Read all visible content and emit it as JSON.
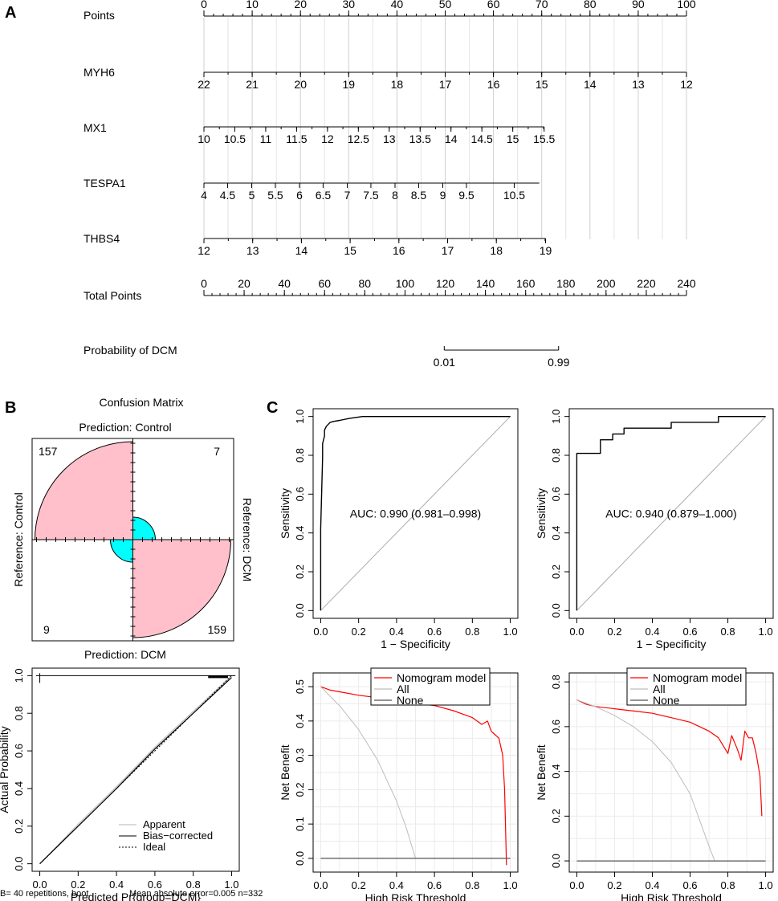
{
  "panels": {
    "a": "A",
    "b": "B",
    "c": "C"
  },
  "nomogram": {
    "rows": [
      {
        "key": "points",
        "label": "Points",
        "values": [
          0,
          10,
          20,
          30,
          40,
          50,
          60,
          70,
          80,
          90,
          100
        ],
        "labels": [
          "0",
          "10",
          "20",
          "30",
          "40",
          "50",
          "60",
          "70",
          "80",
          "90",
          "100"
        ]
      },
      {
        "key": "myh6",
        "label": "MYH6",
        "labels": [
          "22",
          "21",
          "20",
          "19",
          "18",
          "17",
          "16",
          "15",
          "14",
          "13",
          "12"
        ]
      },
      {
        "key": "mx1",
        "label": "MX1",
        "labels": [
          "10",
          "10.5",
          "11",
          "11.5",
          "12",
          "12.5",
          "13",
          "13.5",
          "14",
          "14.5",
          "15",
          "15.5"
        ]
      },
      {
        "key": "tespa1",
        "label": "TESPA1",
        "labels": [
          "4",
          "4.5",
          "5",
          "5.5",
          "6",
          "6.5",
          "7",
          "7.5",
          "8",
          "8.5",
          "9",
          "9.5",
          "10.5"
        ]
      },
      {
        "key": "thbs4",
        "label": "THBS4",
        "labels": [
          "12",
          "13",
          "14",
          "15",
          "16",
          "17",
          "18",
          "19"
        ]
      },
      {
        "key": "total",
        "label": "Total Points",
        "labels": [
          "0",
          "20",
          "40",
          "60",
          "80",
          "100",
          "120",
          "140",
          "160",
          "180",
          "200",
          "220",
          "240"
        ]
      },
      {
        "key": "prob",
        "label": "Probability of DCM",
        "labels": [
          "0.01",
          "0.99"
        ]
      }
    ]
  },
  "confusion": {
    "title": "Confusion Matrix",
    "top": "Prediction: Control",
    "bottom": "Prediction: DCM",
    "left": "Reference: Control",
    "right": "Reference: DCM",
    "counts": {
      "tl": "157",
      "tr": "7",
      "bl": "9",
      "br": "159"
    },
    "colors": {
      "correct": "#FFC0CB",
      "wrong": "#00FFFF"
    }
  },
  "chart_data": [
    {
      "id": "roc1",
      "type": "line",
      "title": "",
      "xlabel": "1 − Specificity",
      "ylabel": "Sensitivity",
      "xlim": [
        0,
        1
      ],
      "ylim": [
        0,
        1
      ],
      "ticks": [
        "0.0",
        "0.2",
        "0.4",
        "0.6",
        "0.8",
        "1.0"
      ],
      "annotation": "AUC: 0.990 (0.981–0.998)",
      "series": [
        {
          "name": "ROC",
          "x": [
            0,
            0,
            0.01,
            0.01,
            0.02,
            0.02,
            0.03,
            0.04,
            0.05,
            0.07,
            0.1,
            0.15,
            0.22,
            1
          ],
          "y": [
            0,
            0.42,
            0.79,
            0.86,
            0.9,
            0.93,
            0.95,
            0.96,
            0.97,
            0.975,
            0.98,
            0.99,
            1,
            1
          ]
        }
      ]
    },
    {
      "id": "roc2",
      "type": "line",
      "title": "",
      "xlabel": "1 − Specificity",
      "ylabel": "Sensitivity",
      "xlim": [
        0,
        1
      ],
      "ylim": [
        0,
        1
      ],
      "ticks": [
        "0.0",
        "0.2",
        "0.4",
        "0.6",
        "0.8",
        "1.0"
      ],
      "annotation": "AUC: 0.940 (0.879–1.000)",
      "series": [
        {
          "name": "ROC",
          "x": [
            0,
            0,
            0.125,
            0.125,
            0.19,
            0.19,
            0.25,
            0.25,
            0.5,
            0.5,
            0.75,
            0.75,
            1
          ],
          "y": [
            0,
            0.81,
            0.81,
            0.88,
            0.88,
            0.91,
            0.91,
            0.94,
            0.94,
            0.97,
            0.97,
            1,
            1
          ]
        }
      ]
    },
    {
      "id": "cal",
      "type": "line",
      "title": "",
      "xlabel": "Predicted Pr{group=DCM}",
      "ylabel": "Actual Probability",
      "xlim": [
        0,
        1
      ],
      "ylim": [
        0,
        1
      ],
      "ticks": [
        "0.0",
        "0.2",
        "0.4",
        "0.6",
        "0.8",
        "1.0"
      ],
      "legend": [
        "Apparent",
        "Bias−corrected",
        "Ideal"
      ],
      "footer_left": "B= 40 repetitions, boot",
      "footer_right": "Mean absolute error=0.005 n=332",
      "series": [
        {
          "name": "Apparent",
          "x": [
            0,
            0.2,
            0.4,
            0.6,
            0.8,
            1
          ],
          "y": [
            0,
            0.21,
            0.41,
            0.62,
            0.81,
            1
          ]
        },
        {
          "name": "Bias−corrected",
          "x": [
            0,
            0.2,
            0.4,
            0.6,
            0.8,
            1
          ],
          "y": [
            0,
            0.2,
            0.4,
            0.61,
            0.8,
            0.99
          ]
        },
        {
          "name": "Ideal",
          "x": [
            0,
            1
          ],
          "y": [
            0,
            1
          ]
        }
      ]
    },
    {
      "id": "dca1",
      "type": "line",
      "title": "",
      "xlabel": "High Risk Threshold",
      "ylabel": "Net Benefit",
      "xlim": [
        0,
        1
      ],
      "ylim": [
        0,
        0.5
      ],
      "xticks": [
        "0.0",
        "0.2",
        "0.4",
        "0.6",
        "0.8",
        "1.0"
      ],
      "yticks": [
        "0.0",
        "0.1",
        "0.2",
        "0.3",
        "0.4",
        "0.5"
      ],
      "legend": [
        "Nomogram model",
        "All",
        "None"
      ],
      "series": [
        {
          "name": "Nomogram model",
          "x": [
            0,
            0.05,
            0.1,
            0.2,
            0.3,
            0.4,
            0.5,
            0.6,
            0.7,
            0.8,
            0.85,
            0.88,
            0.9,
            0.92,
            0.94,
            0.96,
            0.97,
            0.98
          ],
          "y": [
            0.5,
            0.49,
            0.485,
            0.475,
            0.468,
            0.46,
            0.452,
            0.445,
            0.43,
            0.41,
            0.39,
            0.4,
            0.37,
            0.36,
            0.35,
            0.3,
            0.2,
            -0.02
          ]
        },
        {
          "name": "All",
          "x": [
            0,
            0.1,
            0.2,
            0.3,
            0.4,
            0.45,
            0.5
          ],
          "y": [
            0.5,
            0.444,
            0.375,
            0.286,
            0.167,
            0.091,
            0
          ]
        },
        {
          "name": "None",
          "x": [
            0,
            1
          ],
          "y": [
            0,
            0
          ]
        }
      ]
    },
    {
      "id": "dca2",
      "type": "line",
      "title": "",
      "xlabel": "High Risk Threshold",
      "ylabel": "Net Benefit",
      "xlim": [
        0,
        1
      ],
      "ylim": [
        0,
        0.8
      ],
      "xticks": [
        "0.0",
        "0.2",
        "0.4",
        "0.6",
        "0.8",
        "1.0"
      ],
      "yticks": [
        "0.0",
        "0.2",
        "0.4",
        "0.6",
        "0.8"
      ],
      "legend": [
        "Nomogram model",
        "All",
        "None"
      ],
      "series": [
        {
          "name": "Nomogram model",
          "x": [
            0,
            0.05,
            0.1,
            0.2,
            0.3,
            0.4,
            0.5,
            0.6,
            0.7,
            0.75,
            0.8,
            0.82,
            0.85,
            0.87,
            0.89,
            0.91,
            0.93,
            0.95,
            0.97,
            0.98
          ],
          "y": [
            0.72,
            0.7,
            0.69,
            0.68,
            0.67,
            0.66,
            0.64,
            0.62,
            0.58,
            0.55,
            0.48,
            0.56,
            0.5,
            0.45,
            0.58,
            0.55,
            0.55,
            0.48,
            0.38,
            0.2
          ]
        },
        {
          "name": "All",
          "x": [
            0,
            0.1,
            0.2,
            0.3,
            0.4,
            0.5,
            0.6,
            0.7,
            0.73
          ],
          "y": [
            0.72,
            0.689,
            0.65,
            0.6,
            0.533,
            0.44,
            0.3,
            0.067,
            0
          ]
        },
        {
          "name": "None",
          "x": [
            0,
            1
          ],
          "y": [
            0,
            0
          ]
        }
      ]
    }
  ]
}
